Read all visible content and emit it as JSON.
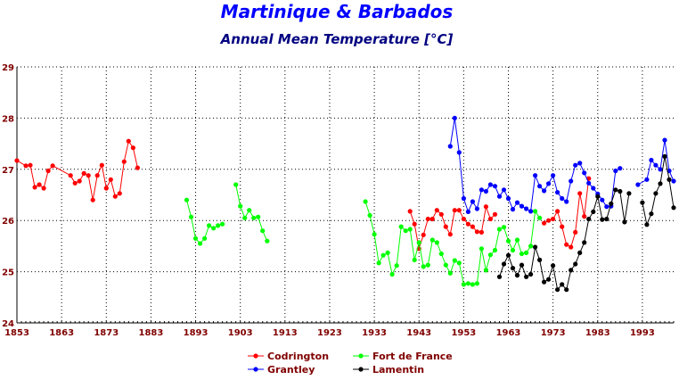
{
  "chart_data": {
    "type": "line",
    "title": "Martinique & Barbados",
    "subtitle": "Annual Mean Temperature [°C]",
    "xlabel": "",
    "ylabel": "",
    "xlim": [
      1853,
      2000
    ],
    "ylim": [
      24,
      29
    ],
    "x_ticks": [
      1853,
      1863,
      1873,
      1883,
      1893,
      1903,
      1913,
      1923,
      1933,
      1943,
      1953,
      1963,
      1973,
      1983,
      1993
    ],
    "y_ticks": [
      24,
      25,
      26,
      27,
      28,
      29
    ],
    "grid": true,
    "legend_position": "bottom",
    "series": [
      {
        "name": "Codrington",
        "color": "#ff0000",
        "segments": [
          [
            [
              1853,
              27.17
            ],
            [
              1855,
              27.07
            ],
            [
              1856,
              27.08
            ],
            [
              1857,
              26.65
            ],
            [
              1858,
              26.7
            ],
            [
              1859,
              26.63
            ],
            [
              1860,
              26.97
            ],
            [
              1861,
              27.07
            ],
            [
              1865,
              26.88
            ],
            [
              1866,
              26.73
            ],
            [
              1867,
              26.77
            ],
            [
              1868,
              26.92
            ],
            [
              1869,
              26.88
            ],
            [
              1870,
              26.4
            ],
            [
              1871,
              26.88
            ],
            [
              1872,
              27.08
            ],
            [
              1873,
              26.63
            ],
            [
              1874,
              26.8
            ],
            [
              1875,
              26.47
            ],
            [
              1876,
              26.53
            ],
            [
              1877,
              27.15
            ],
            [
              1878,
              27.55
            ],
            [
              1879,
              27.42
            ],
            [
              1880,
              27.03
            ]
          ],
          [
            [
              1941,
              26.18
            ],
            [
              1942,
              25.93
            ],
            [
              1943,
              25.45
            ],
            [
              1944,
              25.72
            ],
            [
              1945,
              26.03
            ],
            [
              1946,
              26.03
            ],
            [
              1947,
              26.2
            ],
            [
              1948,
              26.12
            ],
            [
              1949,
              25.88
            ],
            [
              1950,
              25.73
            ],
            [
              1951,
              26.2
            ],
            [
              1952,
              26.2
            ],
            [
              1953,
              26.03
            ],
            [
              1954,
              25.93
            ],
            [
              1955,
              25.88
            ],
            [
              1956,
              25.78
            ],
            [
              1957,
              25.77
            ],
            [
              1958,
              26.27
            ],
            [
              1959,
              26.03
            ],
            [
              1960,
              26.12
            ]
          ],
          [
            [
              1971,
              25.95
            ],
            [
              1972,
              26.0
            ],
            [
              1973,
              26.03
            ],
            [
              1974,
              26.18
            ],
            [
              1975,
              25.88
            ],
            [
              1976,
              25.53
            ],
            [
              1977,
              25.48
            ],
            [
              1978,
              25.77
            ],
            [
              1979,
              26.53
            ],
            [
              1980,
              26.08
            ],
            [
              1981,
              26.82
            ]
          ]
        ]
      },
      {
        "name": "Fort de France",
        "color": "#00ff00",
        "segments": [
          [
            [
              1891,
              26.4
            ],
            [
              1892,
              26.07
            ],
            [
              1893,
              25.65
            ],
            [
              1894,
              25.55
            ],
            [
              1895,
              25.65
            ],
            [
              1896,
              25.9
            ],
            [
              1897,
              25.85
            ],
            [
              1898,
              25.9
            ],
            [
              1899,
              25.93
            ]
          ],
          [
            [
              1902,
              26.7
            ],
            [
              1903,
              26.28
            ],
            [
              1904,
              26.05
            ],
            [
              1905,
              26.2
            ],
            [
              1906,
              26.05
            ],
            [
              1907,
              26.07
            ],
            [
              1908,
              25.8
            ],
            [
              1909,
              25.6
            ]
          ],
          [
            [
              1931,
              26.37
            ],
            [
              1932,
              26.1
            ],
            [
              1933,
              25.73
            ],
            [
              1934,
              25.17
            ],
            [
              1935,
              25.32
            ],
            [
              1936,
              25.37
            ],
            [
              1937,
              24.95
            ],
            [
              1938,
              25.12
            ],
            [
              1939,
              25.88
            ],
            [
              1940,
              25.8
            ],
            [
              1941,
              25.83
            ],
            [
              1942,
              25.23
            ],
            [
              1943,
              25.57
            ],
            [
              1944,
              25.1
            ],
            [
              1945,
              25.13
            ],
            [
              1946,
              25.62
            ],
            [
              1947,
              25.57
            ],
            [
              1948,
              25.35
            ],
            [
              1949,
              25.13
            ],
            [
              1950,
              24.97
            ],
            [
              1951,
              25.22
            ],
            [
              1952,
              25.17
            ],
            [
              1953,
              24.75
            ],
            [
              1954,
              24.77
            ],
            [
              1955,
              24.75
            ],
            [
              1956,
              24.77
            ],
            [
              1957,
              25.45
            ],
            [
              1958,
              25.03
            ],
            [
              1959,
              25.33
            ],
            [
              1960,
              25.42
            ],
            [
              1961,
              25.83
            ],
            [
              1962,
              25.87
            ],
            [
              1963,
              25.6
            ],
            [
              1964,
              25.42
            ],
            [
              1965,
              25.62
            ],
            [
              1966,
              25.35
            ],
            [
              1967,
              25.37
            ],
            [
              1968,
              25.5
            ],
            [
              1969,
              26.18
            ],
            [
              1970,
              26.05
            ]
          ]
        ]
      },
      {
        "name": "Grantley",
        "color": "#0000ff",
        "segments": [
          [
            [
              1950,
              27.45
            ],
            [
              1951,
              28.0
            ],
            [
              1952,
              27.33
            ],
            [
              1953,
              26.43
            ],
            [
              1954,
              26.17
            ],
            [
              1955,
              26.37
            ],
            [
              1956,
              26.23
            ],
            [
              1957,
              26.6
            ],
            [
              1958,
              26.57
            ],
            [
              1959,
              26.7
            ],
            [
              1960,
              26.67
            ],
            [
              1961,
              26.47
            ],
            [
              1962,
              26.6
            ],
            [
              1963,
              26.43
            ],
            [
              1964,
              26.22
            ],
            [
              1965,
              26.35
            ],
            [
              1966,
              26.28
            ],
            [
              1967,
              26.23
            ],
            [
              1968,
              26.18
            ],
            [
              1969,
              26.88
            ],
            [
              1970,
              26.67
            ],
            [
              1971,
              26.58
            ],
            [
              1972,
              26.72
            ],
            [
              1973,
              26.88
            ],
            [
              1974,
              26.55
            ],
            [
              1975,
              26.43
            ],
            [
              1976,
              26.37
            ],
            [
              1977,
              26.77
            ],
            [
              1978,
              27.08
            ],
            [
              1979,
              27.12
            ],
            [
              1980,
              26.93
            ],
            [
              1981,
              26.73
            ],
            [
              1982,
              26.63
            ],
            [
              1983,
              26.52
            ],
            [
              1984,
              26.4
            ],
            [
              1985,
              26.27
            ],
            [
              1986,
              26.28
            ],
            [
              1987,
              26.97
            ],
            [
              1988,
              27.02
            ]
          ],
          [
            [
              1992,
              26.7
            ],
            [
              1994,
              26.8
            ],
            [
              1995,
              27.18
            ],
            [
              1996,
              27.08
            ],
            [
              1997,
              27.0
            ],
            [
              1998,
              27.57
            ],
            [
              1999,
              26.97
            ],
            [
              2000,
              26.77
            ]
          ]
        ]
      },
      {
        "name": "Lamentin",
        "color": "#000000",
        "segments": [
          [
            [
              1961,
              24.9
            ],
            [
              1962,
              25.15
            ],
            [
              1963,
              25.32
            ],
            [
              1964,
              25.07
            ],
            [
              1965,
              24.93
            ],
            [
              1966,
              25.13
            ],
            [
              1967,
              24.9
            ],
            [
              1968,
              24.95
            ],
            [
              1969,
              25.48
            ],
            [
              1970,
              25.23
            ],
            [
              1971,
              24.8
            ],
            [
              1972,
              24.85
            ],
            [
              1973,
              25.12
            ],
            [
              1974,
              24.65
            ],
            [
              1975,
              24.75
            ],
            [
              1976,
              24.65
            ],
            [
              1977,
              25.03
            ],
            [
              1978,
              25.15
            ],
            [
              1979,
              25.37
            ],
            [
              1980,
              25.57
            ],
            [
              1981,
              26.03
            ],
            [
              1982,
              26.17
            ],
            [
              1983,
              26.47
            ],
            [
              1984,
              26.02
            ],
            [
              1985,
              26.03
            ],
            [
              1986,
              26.33
            ],
            [
              1987,
              26.6
            ],
            [
              1988,
              26.57
            ],
            [
              1989,
              25.97
            ],
            [
              1990,
              26.53
            ]
          ],
          [
            [
              1993,
              26.35
            ],
            [
              1994,
              25.92
            ],
            [
              1995,
              26.13
            ],
            [
              1996,
              26.53
            ],
            [
              1997,
              26.72
            ],
            [
              1998,
              27.25
            ],
            [
              1999,
              26.8
            ],
            [
              2000,
              26.25
            ]
          ]
        ]
      }
    ]
  }
}
